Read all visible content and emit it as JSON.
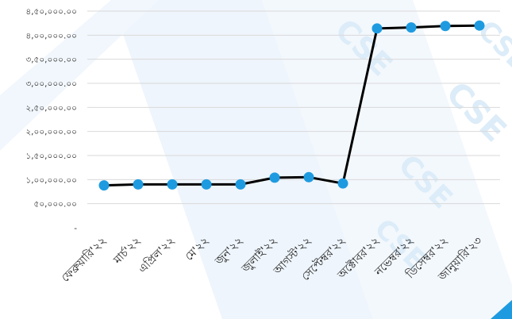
{
  "chart_data": {
    "type": "line",
    "title": "",
    "xlabel": "",
    "ylabel": "",
    "categories": [
      "ফেব্রুয়ারি'২২",
      "মার্চ'২২",
      "এপ্রিল'২২",
      "মে'২২",
      "জুন'২২",
      "জুলাই'২২",
      "আগস্ট'২২",
      "সেপ্টেম্বর'২২",
      "অক্টোবর'২২",
      "নভেম্বর'২২",
      "ডিসেম্বর'২২",
      "জানুয়ারি'২৩"
    ],
    "series": [
      {
        "values": [
          88000,
          90000,
          90000,
          90000,
          90000,
          104000,
          105000,
          92000,
          414000,
          416000,
          419000,
          420000
        ]
      }
    ],
    "ylim": [
      0,
      450000
    ],
    "yticks": [
      0,
      50000,
      100000,
      150000,
      200000,
      250000,
      300000,
      350000,
      400000,
      450000
    ],
    "ytick_labels": [
      "-",
      "৫০,০০০.০০",
      "১,০০,০০০.০০",
      "১,৫০,০০০.০০",
      "২,০০,০০০.০০",
      "২,৫০,০০০.০০",
      "৩,০০,০০০.০০",
      "৩,৫০,০০০.০০",
      "৪,০০,০০০.০০",
      "৪,৫০,০০০.০০"
    ],
    "grid": true,
    "legend": "none",
    "colors": {
      "line": "#000000",
      "marker": "#1e9be0",
      "grid": "#d9d9d9",
      "watermark": "#dcecf8",
      "corner": "#1e9be0"
    }
  },
  "watermark": {
    "text": "CSE"
  }
}
